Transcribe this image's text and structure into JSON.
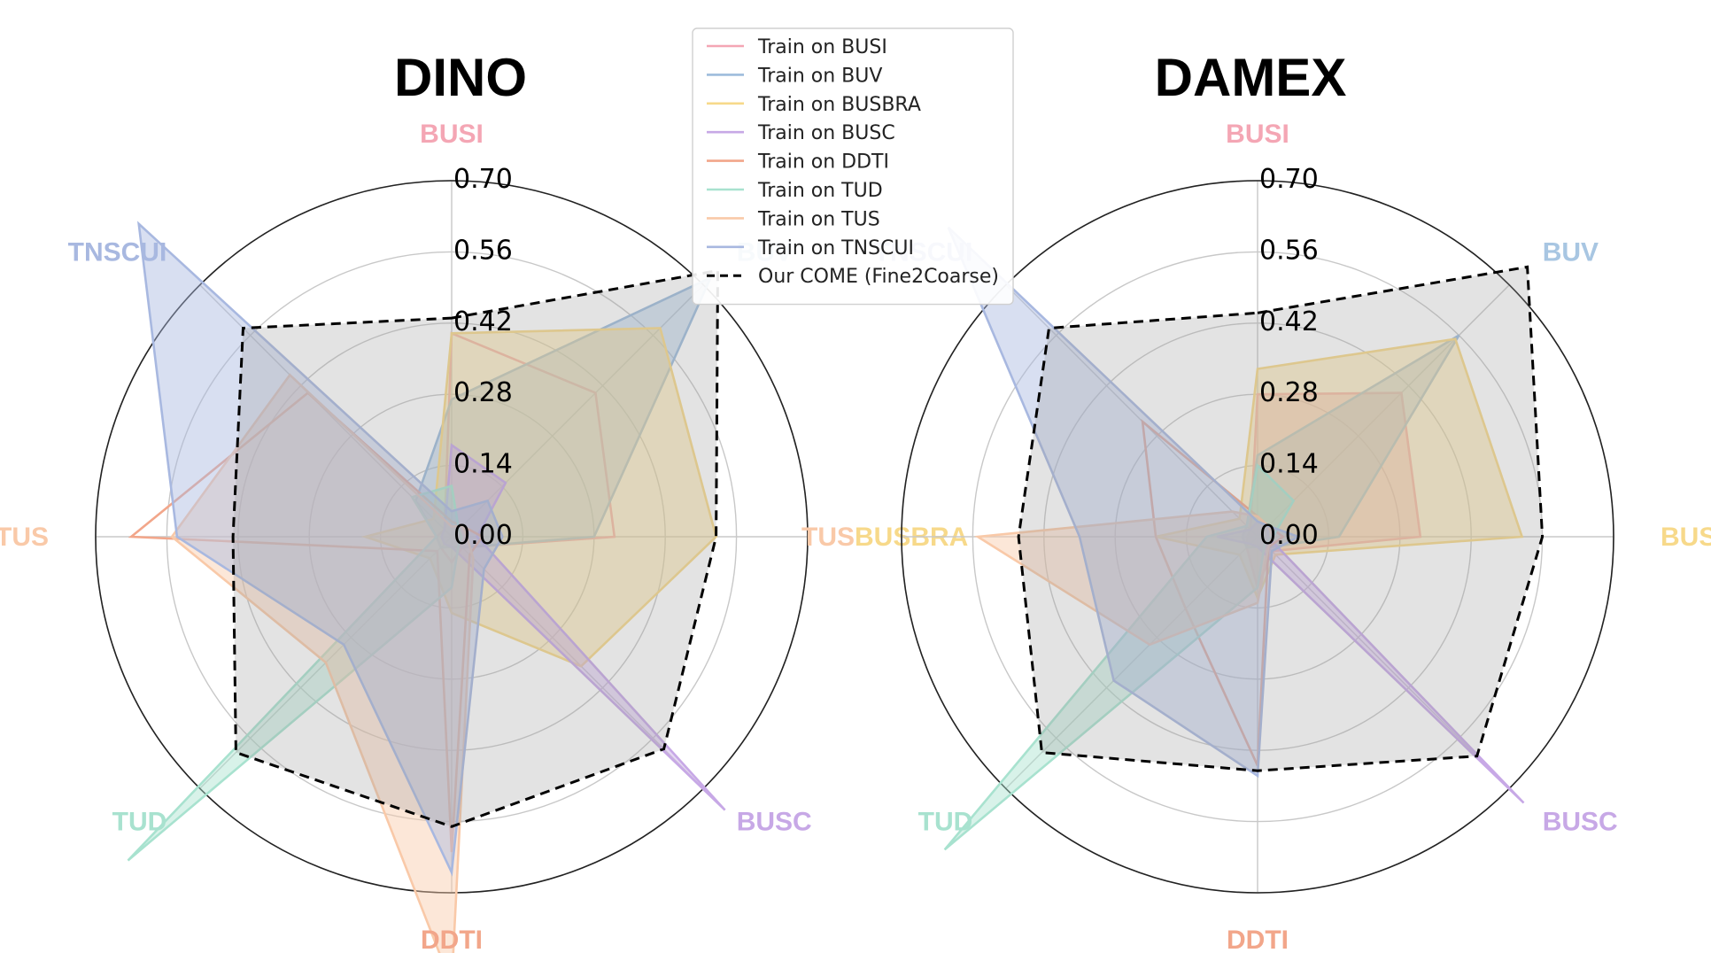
{
  "chart_data": {
    "type": "radar",
    "categories": [
      "BUSI",
      "BUV",
      "BUSBRA",
      "BUSC",
      "DDTI",
      "TUD",
      "TUS",
      "TNSCUI"
    ],
    "category_colors": [
      "#f4a6b4",
      "#a8c6e2",
      "#f7d98a",
      "#c7a8e6",
      "#f2a68a",
      "#a8e2cf",
      "#f9c9a8",
      "#a8b8e0"
    ],
    "rticks": [
      "0.00",
      "0.14",
      "0.28",
      "0.42",
      "0.56",
      "0.70"
    ],
    "rlim": [
      0,
      0.7
    ],
    "grid": true,
    "legend": {
      "placement": "top-center",
      "entries": [
        {
          "label": "Train on BUSI",
          "color": "#f4a6b4",
          "style": "solid"
        },
        {
          "label": "Train on BUV",
          "color": "#9dbcdc",
          "style": "solid"
        },
        {
          "label": "Train on BUSBRA",
          "color": "#f7d98a",
          "style": "solid"
        },
        {
          "label": "Train on BUSC",
          "color": "#c7a8e6",
          "style": "solid"
        },
        {
          "label": "Train on DDTI",
          "color": "#f2a68a",
          "style": "solid"
        },
        {
          "label": "Train on TUD",
          "color": "#a8e2cf",
          "style": "solid"
        },
        {
          "label": "Train on TUS",
          "color": "#f9c9a8",
          "style": "solid"
        },
        {
          "label": "Train on TNSCUI",
          "color": "#a8b8e0",
          "style": "solid"
        },
        {
          "label": "Our COME (Fine2Coarse)",
          "color": "#000000",
          "style": "dashed"
        }
      ]
    },
    "charts": [
      {
        "title": "DINO",
        "series": [
          {
            "legend_index": 0,
            "color": "#f4a6b4",
            "fill": false,
            "values": [
              0.4,
              0.4,
              0.32,
              0.03,
              0.05,
              0.03,
              0.03,
              0.02
            ]
          },
          {
            "legend_index": 1,
            "color": "#9dbcdc",
            "fill": true,
            "values": [
              0.27,
              0.72,
              0.28,
              0.03,
              0.02,
              0.03,
              0.03,
              0.1
            ]
          },
          {
            "legend_index": 2,
            "color": "#f7d98a",
            "fill": true,
            "values": [
              0.4,
              0.58,
              0.52,
              0.36,
              0.15,
              0.06,
              0.17,
              0.05
            ]
          },
          {
            "legend_index": 3,
            "color": "#c7a8e6",
            "fill": true,
            "values": [
              0.18,
              0.15,
              0.05,
              0.76,
              0.02,
              0.02,
              0.02,
              0.02
            ]
          },
          {
            "legend_index": 4,
            "color": "#f2a68a",
            "fill": false,
            "values": [
              0.03,
              0.03,
              0.06,
              0.05,
              0.62,
              0.04,
              0.63,
              0.4
            ]
          },
          {
            "legend_index": 5,
            "color": "#a8e2cf",
            "fill": true,
            "values": [
              0.1,
              0.02,
              0.02,
              0.02,
              0.1,
              0.9,
              0.03,
              0.11
            ]
          },
          {
            "legend_index": 6,
            "color": "#f9c9a8",
            "fill": true,
            "values": [
              0.02,
              0.03,
              0.03,
              0.06,
              0.88,
              0.35,
              0.55,
              0.45
            ]
          },
          {
            "legend_index": 7,
            "color": "#a8b8e0",
            "fill": true,
            "values": [
              0.05,
              0.1,
              0.1,
              0.09,
              0.66,
              0.3,
              0.54,
              0.87
            ]
          },
          {
            "legend_index": 8,
            "color": "#000000",
            "fill": true,
            "dashed": true,
            "values": [
              0.43,
              0.74,
              0.52,
              0.59,
              0.57,
              0.6,
              0.43,
              0.58
            ]
          }
        ]
      },
      {
        "title": "DAMEX",
        "series": [
          {
            "legend_index": 0,
            "color": "#f4a6b4",
            "fill": true,
            "values": [
              0.28,
              0.4,
              0.32,
              0.04,
              0.1,
              0.03,
              0.02,
              0.02
            ]
          },
          {
            "legend_index": 1,
            "color": "#9dbcdc",
            "fill": true,
            "values": [
              0.16,
              0.56,
              0.16,
              0.03,
              0.02,
              0.03,
              0.03,
              0.03
            ]
          },
          {
            "legend_index": 2,
            "color": "#f7d98a",
            "fill": true,
            "values": [
              0.33,
              0.55,
              0.52,
              0.05,
              0.12,
              0.05,
              0.2,
              0.05
            ]
          },
          {
            "legend_index": 3,
            "color": "#c7a8e6",
            "fill": true,
            "values": [
              0.03,
              0.03,
              0.02,
              0.74,
              0.02,
              0.02,
              0.08,
              0.02
            ]
          },
          {
            "legend_index": 4,
            "color": "#f2a68a",
            "fill": false,
            "values": [
              0.04,
              0.03,
              0.05,
              0.03,
              0.45,
              0.2,
              0.2,
              0.32
            ]
          },
          {
            "legend_index": 5,
            "color": "#a8e2cf",
            "fill": true,
            "values": [
              0.14,
              0.1,
              0.03,
              0.02,
              0.1,
              0.87,
              0.1,
              0.03
            ]
          },
          {
            "legend_index": 6,
            "color": "#f9c9a8",
            "fill": true,
            "values": [
              0.04,
              0.03,
              0.03,
              0.03,
              0.13,
              0.3,
              0.55,
              0.07
            ]
          },
          {
            "legend_index": 7,
            "color": "#a8b8e0",
            "fill": true,
            "values": [
              0.03,
              0.03,
              0.08,
              0.04,
              0.47,
              0.4,
              0.35,
              0.86
            ]
          },
          {
            "legend_index": 8,
            "color": "#000000",
            "fill": true,
            "dashed": true,
            "values": [
              0.44,
              0.75,
              0.56,
              0.61,
              0.46,
              0.6,
              0.47,
              0.58
            ]
          }
        ]
      }
    ]
  }
}
